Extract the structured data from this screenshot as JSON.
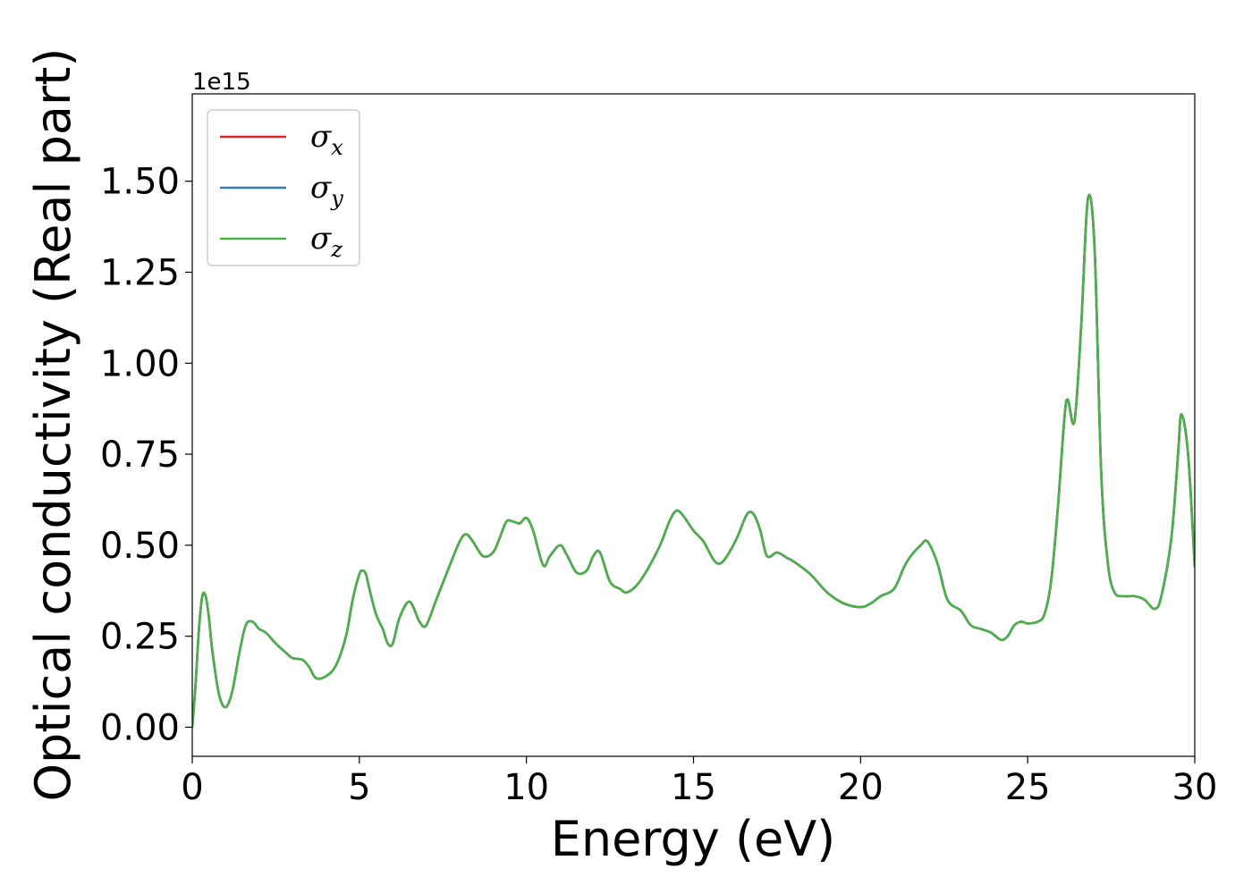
{
  "chart_data": {
    "type": "line",
    "xlabel": "Energy (eV)",
    "ylabel": "Optical conductivity (Real part)",
    "y_offset_label": "1e15",
    "xlim": [
      0,
      30
    ],
    "ylim": [
      -0.08,
      1.74
    ],
    "x_ticks": [
      {
        "value": 0,
        "label": "0"
      },
      {
        "value": 5,
        "label": "5"
      },
      {
        "value": 10,
        "label": "10"
      },
      {
        "value": 15,
        "label": "15"
      },
      {
        "value": 20,
        "label": "20"
      },
      {
        "value": 25,
        "label": "25"
      },
      {
        "value": 30,
        "label": "30"
      }
    ],
    "y_ticks": [
      {
        "value": 0.0,
        "label": "0.00"
      },
      {
        "value": 0.25,
        "label": "0.25"
      },
      {
        "value": 0.5,
        "label": "0.50"
      },
      {
        "value": 0.75,
        "label": "0.75"
      },
      {
        "value": 1.0,
        "label": "1.00"
      },
      {
        "value": 1.25,
        "label": "1.25"
      },
      {
        "value": 1.5,
        "label": "1.50"
      }
    ],
    "legend": {
      "position": "top-left"
    },
    "grid": false,
    "x": [
      0,
      0.1,
      0.2,
      0.3,
      0.4,
      0.5,
      0.6,
      0.8,
      1.0,
      1.2,
      1.4,
      1.6,
      1.8,
      2.0,
      2.2,
      2.5,
      2.8,
      3.0,
      3.3,
      3.5,
      3.7,
      4.0,
      4.3,
      4.6,
      4.8,
      5.0,
      5.1,
      5.2,
      5.3,
      5.5,
      5.7,
      5.85,
      6.0,
      6.2,
      6.5,
      6.8,
      7.0,
      7.3,
      7.6,
      8.0,
      8.2,
      8.4,
      8.7,
      9.0,
      9.2,
      9.4,
      9.6,
      9.8,
      10.0,
      10.2,
      10.5,
      10.7,
      11.0,
      11.2,
      11.5,
      11.8,
      12.0,
      12.2,
      12.5,
      12.8,
      13.0,
      13.3,
      13.6,
      14.0,
      14.3,
      14.5,
      14.7,
      15.0,
      15.3,
      15.6,
      15.8,
      16.0,
      16.3,
      16.6,
      16.8,
      17.0,
      17.2,
      17.5,
      17.8,
      18.0,
      18.5,
      19.0,
      19.5,
      20.0,
      20.3,
      20.6,
      21.0,
      21.3,
      21.5,
      21.8,
      22.0,
      22.3,
      22.6,
      23.0,
      23.3,
      23.6,
      23.9,
      24.2,
      24.4,
      24.6,
      24.8,
      25.0,
      25.3,
      25.5,
      25.7,
      25.9,
      26.1,
      26.2,
      26.4,
      26.6,
      26.8,
      27.0,
      27.2,
      27.4,
      27.6,
      27.9,
      28.2,
      28.5,
      28.8,
      29.0,
      29.3,
      29.5,
      29.6,
      29.8,
      30.0
    ],
    "series": [
      {
        "name": "σx",
        "color": "#d62728",
        "y": [
          0,
          0.12,
          0.27,
          0.36,
          0.36,
          0.3,
          0.21,
          0.09,
          0.055,
          0.1,
          0.2,
          0.28,
          0.29,
          0.27,
          0.26,
          0.23,
          0.205,
          0.19,
          0.185,
          0.165,
          0.135,
          0.14,
          0.17,
          0.25,
          0.35,
          0.42,
          0.43,
          0.42,
          0.38,
          0.31,
          0.27,
          0.23,
          0.23,
          0.3,
          0.345,
          0.29,
          0.28,
          0.35,
          0.42,
          0.51,
          0.53,
          0.51,
          0.47,
          0.48,
          0.52,
          0.565,
          0.565,
          0.56,
          0.575,
          0.54,
          0.445,
          0.47,
          0.5,
          0.475,
          0.425,
          0.43,
          0.47,
          0.48,
          0.4,
          0.38,
          0.37,
          0.39,
          0.43,
          0.5,
          0.57,
          0.595,
          0.58,
          0.54,
          0.51,
          0.46,
          0.45,
          0.47,
          0.52,
          0.585,
          0.585,
          0.54,
          0.47,
          0.48,
          0.465,
          0.455,
          0.42,
          0.37,
          0.34,
          0.33,
          0.34,
          0.36,
          0.38,
          0.44,
          0.47,
          0.5,
          0.51,
          0.45,
          0.35,
          0.32,
          0.28,
          0.27,
          0.26,
          0.24,
          0.25,
          0.28,
          0.29,
          0.285,
          0.29,
          0.31,
          0.4,
          0.6,
          0.85,
          0.9,
          0.84,
          1.1,
          1.45,
          1.32,
          0.7,
          0.45,
          0.37,
          0.36,
          0.36,
          0.35,
          0.325,
          0.36,
          0.52,
          0.75,
          0.86,
          0.75,
          0.44
        ]
      },
      {
        "name": "σy",
        "color": "#377eb8",
        "y": [
          0,
          0.12,
          0.27,
          0.36,
          0.36,
          0.3,
          0.21,
          0.09,
          0.055,
          0.1,
          0.2,
          0.28,
          0.29,
          0.27,
          0.26,
          0.23,
          0.205,
          0.19,
          0.185,
          0.165,
          0.135,
          0.14,
          0.17,
          0.25,
          0.35,
          0.42,
          0.43,
          0.42,
          0.38,
          0.31,
          0.27,
          0.23,
          0.23,
          0.3,
          0.345,
          0.29,
          0.28,
          0.35,
          0.42,
          0.51,
          0.53,
          0.51,
          0.47,
          0.48,
          0.52,
          0.565,
          0.565,
          0.56,
          0.575,
          0.54,
          0.445,
          0.47,
          0.5,
          0.475,
          0.425,
          0.43,
          0.47,
          0.48,
          0.4,
          0.38,
          0.37,
          0.39,
          0.43,
          0.5,
          0.57,
          0.595,
          0.58,
          0.54,
          0.51,
          0.46,
          0.45,
          0.47,
          0.52,
          0.585,
          0.585,
          0.54,
          0.47,
          0.48,
          0.465,
          0.455,
          0.42,
          0.37,
          0.34,
          0.33,
          0.34,
          0.36,
          0.38,
          0.44,
          0.47,
          0.5,
          0.51,
          0.45,
          0.35,
          0.32,
          0.28,
          0.27,
          0.26,
          0.24,
          0.25,
          0.28,
          0.29,
          0.285,
          0.29,
          0.31,
          0.4,
          0.6,
          0.85,
          0.9,
          0.84,
          1.1,
          1.45,
          1.32,
          0.7,
          0.45,
          0.37,
          0.36,
          0.36,
          0.35,
          0.325,
          0.36,
          0.52,
          0.75,
          0.86,
          0.75,
          0.44
        ]
      },
      {
        "name": "σz",
        "color": "#4daf4a",
        "y": [
          0,
          0.12,
          0.27,
          0.36,
          0.36,
          0.3,
          0.21,
          0.09,
          0.055,
          0.1,
          0.2,
          0.28,
          0.29,
          0.27,
          0.26,
          0.23,
          0.205,
          0.19,
          0.185,
          0.165,
          0.135,
          0.14,
          0.17,
          0.25,
          0.35,
          0.42,
          0.43,
          0.42,
          0.38,
          0.31,
          0.27,
          0.23,
          0.23,
          0.3,
          0.345,
          0.29,
          0.28,
          0.35,
          0.42,
          0.51,
          0.53,
          0.51,
          0.47,
          0.48,
          0.52,
          0.565,
          0.565,
          0.56,
          0.575,
          0.54,
          0.445,
          0.47,
          0.5,
          0.475,
          0.425,
          0.43,
          0.47,
          0.48,
          0.4,
          0.38,
          0.37,
          0.39,
          0.43,
          0.5,
          0.57,
          0.595,
          0.58,
          0.54,
          0.51,
          0.46,
          0.45,
          0.47,
          0.52,
          0.585,
          0.585,
          0.54,
          0.47,
          0.48,
          0.465,
          0.455,
          0.42,
          0.37,
          0.34,
          0.33,
          0.34,
          0.36,
          0.38,
          0.44,
          0.47,
          0.5,
          0.51,
          0.45,
          0.35,
          0.32,
          0.28,
          0.27,
          0.26,
          0.24,
          0.25,
          0.28,
          0.29,
          0.285,
          0.29,
          0.31,
          0.4,
          0.6,
          0.85,
          0.9,
          0.84,
          1.1,
          1.45,
          1.32,
          0.7,
          0.45,
          0.37,
          0.36,
          0.36,
          0.35,
          0.325,
          0.36,
          0.52,
          0.75,
          0.86,
          0.75,
          0.44
        ]
      }
    ]
  }
}
